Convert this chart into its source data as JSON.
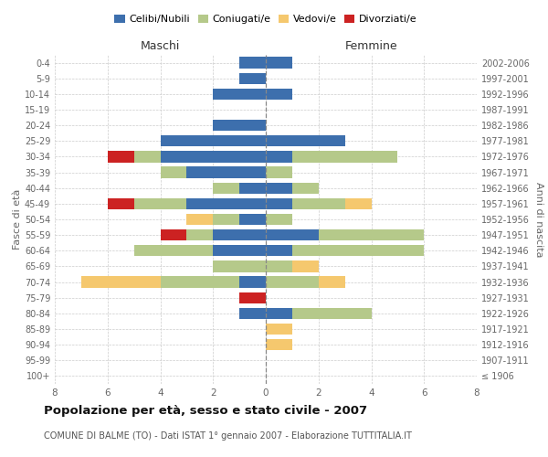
{
  "age_groups": [
    "100+",
    "95-99",
    "90-94",
    "85-89",
    "80-84",
    "75-79",
    "70-74",
    "65-69",
    "60-64",
    "55-59",
    "50-54",
    "45-49",
    "40-44",
    "35-39",
    "30-34",
    "25-29",
    "20-24",
    "15-19",
    "10-14",
    "5-9",
    "0-4"
  ],
  "birth_years": [
    "≤ 1906",
    "1907-1911",
    "1912-1916",
    "1917-1921",
    "1922-1926",
    "1927-1931",
    "1932-1936",
    "1937-1941",
    "1942-1946",
    "1947-1951",
    "1952-1956",
    "1957-1961",
    "1962-1966",
    "1967-1971",
    "1972-1976",
    "1977-1981",
    "1982-1986",
    "1987-1991",
    "1992-1996",
    "1997-2001",
    "2002-2006"
  ],
  "male": {
    "celibi": [
      0,
      0,
      0,
      0,
      1,
      0,
      1,
      0,
      2,
      2,
      1,
      3,
      1,
      3,
      4,
      4,
      2,
      0,
      2,
      1,
      1
    ],
    "coniugati": [
      0,
      0,
      0,
      0,
      0,
      0,
      3,
      2,
      3,
      1,
      1,
      2,
      1,
      1,
      1,
      0,
      0,
      0,
      0,
      0,
      0
    ],
    "vedovi": [
      0,
      0,
      0,
      0,
      0,
      0,
      3,
      0,
      0,
      0,
      1,
      0,
      0,
      0,
      0,
      0,
      0,
      0,
      0,
      0,
      0
    ],
    "divorziati": [
      0,
      0,
      0,
      0,
      0,
      1,
      0,
      0,
      0,
      1,
      0,
      1,
      0,
      0,
      1,
      0,
      0,
      0,
      0,
      0,
      0
    ]
  },
  "female": {
    "nubili": [
      0,
      0,
      0,
      0,
      1,
      0,
      0,
      0,
      1,
      2,
      0,
      1,
      1,
      0,
      1,
      3,
      0,
      0,
      1,
      0,
      1
    ],
    "coniugate": [
      0,
      0,
      0,
      0,
      3,
      0,
      2,
      1,
      5,
      4,
      1,
      2,
      1,
      1,
      4,
      0,
      0,
      0,
      0,
      0,
      0
    ],
    "vedove": [
      0,
      0,
      1,
      1,
      0,
      0,
      1,
      1,
      0,
      0,
      0,
      1,
      0,
      0,
      0,
      0,
      0,
      0,
      0,
      0,
      0
    ],
    "divorziate": [
      0,
      0,
      0,
      0,
      0,
      0,
      0,
      0,
      0,
      0,
      0,
      0,
      0,
      0,
      0,
      0,
      0,
      0,
      0,
      0,
      0
    ]
  },
  "colors": {
    "celibi_nubili": "#3d6fad",
    "coniugati": "#b5c98a",
    "vedovi": "#f5c86e",
    "divorziati": "#cc2222"
  },
  "xlim": 8,
  "title": "Popolazione per età, sesso e stato civile - 2007",
  "subtitle": "COMUNE DI BALME (TO) - Dati ISTAT 1° gennaio 2007 - Elaborazione TUTTITALIA.IT",
  "ylabel_left": "Fasce di età",
  "ylabel_right": "Anni di nascita",
  "xlabel_left": "Maschi",
  "xlabel_right": "Femmine",
  "background_color": "#ffffff"
}
